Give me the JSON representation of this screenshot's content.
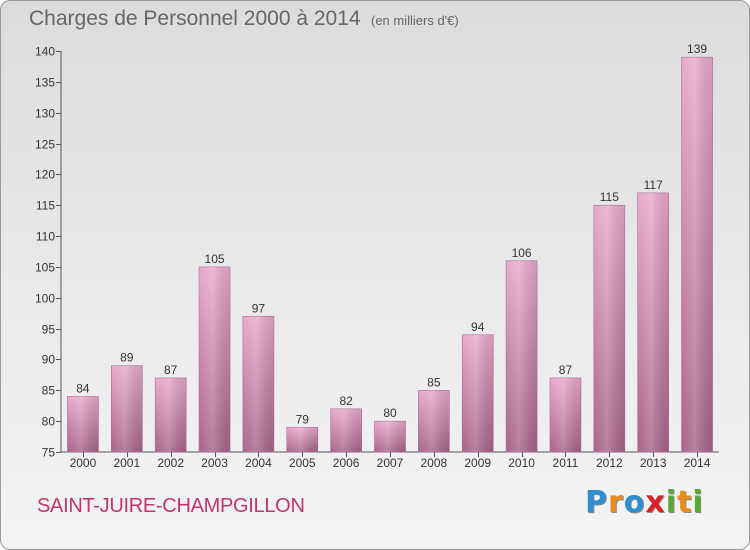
{
  "title": "Charges de Personnel 2000 à 2014",
  "subtitle": "(en milliers d'€)",
  "commune": "SAINT-JUIRE-CHAMPGILLON",
  "logo": {
    "text": "Proxiti",
    "colors": [
      "#2e8fd0",
      "#e98a1c",
      "#d9222a",
      "#5aa834"
    ]
  },
  "chart_data": {
    "type": "bar",
    "title": "Charges de Personnel 2000 à 2014",
    "subtitle": "(en milliers d'€)",
    "xlabel": "",
    "ylabel": "",
    "categories": [
      "2000",
      "2001",
      "2002",
      "2003",
      "2004",
      "2005",
      "2006",
      "2007",
      "2008",
      "2009",
      "2010",
      "2011",
      "2012",
      "2013",
      "2014"
    ],
    "values": [
      84,
      89,
      87,
      105,
      97,
      79,
      82,
      80,
      85,
      94,
      106,
      87,
      115,
      117,
      139
    ],
    "ylim": [
      75,
      140
    ],
    "yticks": [
      75,
      80,
      85,
      90,
      95,
      100,
      105,
      110,
      115,
      120,
      125,
      130,
      135,
      140
    ],
    "grid": false,
    "legend": "none",
    "bar_color": "#c77fa6",
    "data_labels": true
  }
}
